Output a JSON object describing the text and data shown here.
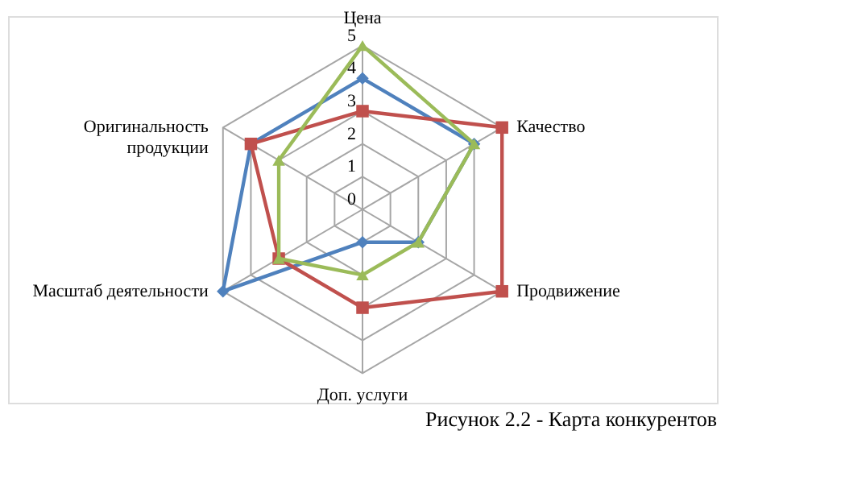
{
  "chart_data": {
    "type": "radar",
    "title": "Рисунок 2.2 - Карта конкурентов",
    "categories": [
      "Цена",
      "Качество",
      "Продвижение",
      "Доп. услуги",
      "Масштаб деятельности",
      "Оригинальность\nпродукции"
    ],
    "ylim": [
      0,
      5
    ],
    "yticks": [
      0,
      1,
      2,
      3,
      4,
      5
    ],
    "grid": true,
    "legend": false,
    "line_style": "solid",
    "series": [
      {
        "color": "#4f81bd",
        "marker": "diamond",
        "values": [
          4,
          4,
          2,
          1,
          5,
          4
        ]
      },
      {
        "color": "#c0504d",
        "marker": "square",
        "values": [
          3,
          5,
          5,
          3,
          3,
          4
        ]
      },
      {
        "color": "#9bbb59",
        "marker": "triangle",
        "values": [
          5,
          4,
          2,
          2,
          3,
          3
        ]
      }
    ]
  }
}
